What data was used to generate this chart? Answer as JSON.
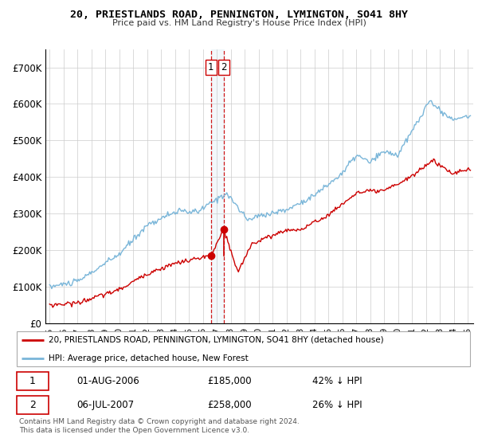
{
  "title1": "20, PRIESTLANDS ROAD, PENNINGTON, LYMINGTON, SO41 8HY",
  "title2": "Price paid vs. HM Land Registry's House Price Index (HPI)",
  "legend_line1": "20, PRIESTLANDS ROAD, PENNINGTON, LYMINGTON, SO41 8HY (detached house)",
  "legend_line2": "HPI: Average price, detached house, New Forest",
  "sale1_label": "1",
  "sale1_date": "01-AUG-2006",
  "sale1_price": "£185,000",
  "sale1_hpi": "42% ↓ HPI",
  "sale2_label": "2",
  "sale2_date": "06-JUL-2007",
  "sale2_price": "£258,000",
  "sale2_hpi": "26% ↓ HPI",
  "footnote": "Contains HM Land Registry data © Crown copyright and database right 2024.\nThis data is licensed under the Open Government Licence v3.0.",
  "hpi_color": "#7ab6d9",
  "price_color": "#cc0000",
  "marker_color": "#cc0000",
  "vline_color": "#cc0000",
  "shade_color": "#d0e4f0",
  "background_color": "#ffffff",
  "grid_color": "#cccccc",
  "ylim": [
    0,
    750000
  ],
  "yticks": [
    0,
    100000,
    200000,
    300000,
    400000,
    500000,
    600000,
    700000
  ],
  "sale1_x": 2006.583,
  "sale1_y": 185000,
  "sale2_x": 2007.5,
  "sale2_y": 258000,
  "xmin": 1995,
  "xmax": 2025
}
